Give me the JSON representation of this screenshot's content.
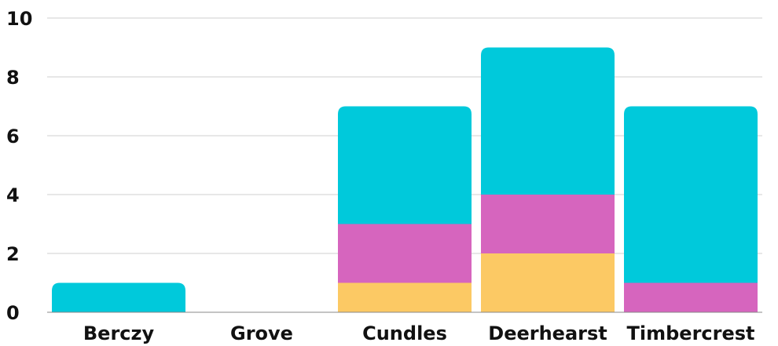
{
  "chart_data": {
    "type": "bar",
    "stacked": true,
    "categories": [
      "Berczy",
      "Grove",
      "Cundles",
      "Deerhearst",
      "Timbercrest"
    ],
    "series": [
      {
        "color": "#fcc964",
        "values": [
          0,
          0,
          1,
          2,
          0
        ]
      },
      {
        "color": "#d665be",
        "values": [
          0,
          0,
          2,
          2,
          1
        ]
      },
      {
        "color": "#00c9db",
        "values": [
          1,
          0,
          4,
          5,
          6
        ]
      }
    ],
    "ylim": [
      0,
      10
    ],
    "yticks": [
      0,
      2,
      4,
      6,
      8,
      10
    ],
    "grid": true,
    "title": "",
    "xlabel": "",
    "ylabel": ""
  }
}
